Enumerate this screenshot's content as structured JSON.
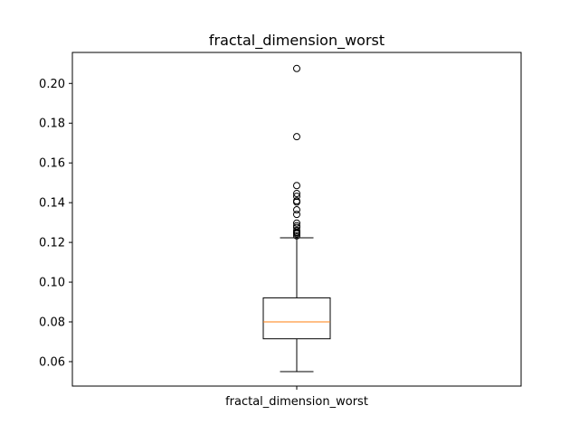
{
  "chart_data": {
    "type": "box",
    "title": "fractal_dimension_worst",
    "categories": [
      "fractal_dimension_worst"
    ],
    "ylim": [
      0.0477,
      0.2156
    ],
    "yticks": [
      0.06,
      0.08,
      0.1,
      0.12,
      0.14,
      0.16,
      0.18,
      0.2
    ],
    "ytick_labels": [
      "0.06",
      "0.08",
      "0.10",
      "0.12",
      "0.14",
      "0.16",
      "0.18",
      "0.20"
    ],
    "grid": false,
    "boxes": [
      {
        "label": "fractal_dimension_worst",
        "whisker_low": 0.055,
        "q1": 0.0715,
        "median": 0.08,
        "q3": 0.0921,
        "whisker_high": 0.1223,
        "outliers": [
          0.2075,
          0.1732,
          0.1486,
          0.1446,
          0.1432,
          0.1409,
          0.1403,
          0.1364,
          0.1341,
          0.1297,
          0.1284,
          0.1275,
          0.126,
          0.1252,
          0.1249,
          0.1243,
          0.1233
        ]
      }
    ],
    "colors": {
      "box": "#000000",
      "median": "#ff7f0e",
      "outlier": "#000000"
    }
  }
}
